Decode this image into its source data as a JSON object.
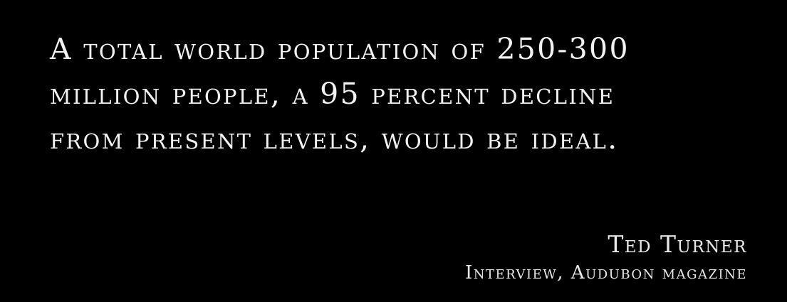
{
  "quote": {
    "lines": [
      "A total world population of 250-300",
      "million people, a 95 percent decline",
      "from present levels, would be ideal."
    ]
  },
  "attribution": {
    "author": "Ted Turner",
    "source": "Interview, Audubon magazine"
  },
  "colors": {
    "background": "#000000",
    "text": "#f2f2f2"
  }
}
